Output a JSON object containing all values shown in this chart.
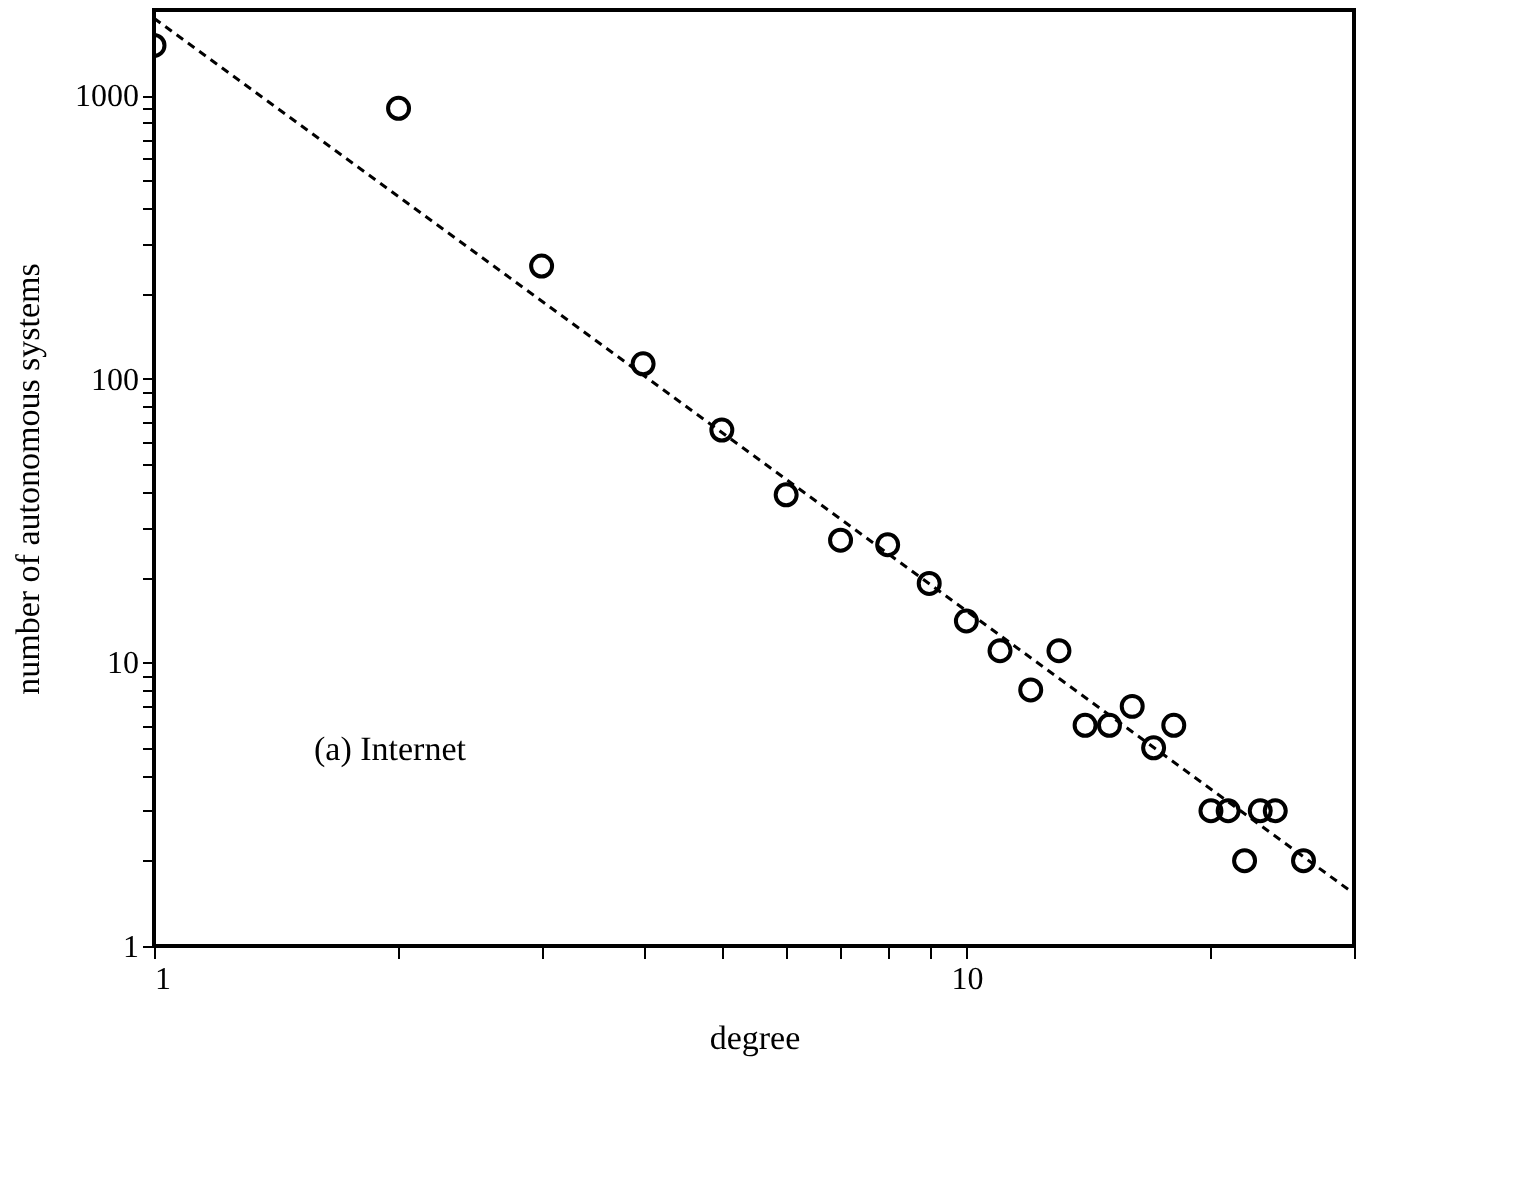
{
  "chart_data": {
    "type": "scatter",
    "xlabel": "degree",
    "ylabel": "number of autonomous systems",
    "annotations": [
      "(a)  Internet"
    ],
    "log": "xy",
    "grid": false,
    "marker": "circle",
    "xlim": [
      1,
      30
    ],
    "ylim": [
      1,
      2000
    ],
    "xticks": [
      1,
      {
        "value": 2,
        "label": null
      },
      {
        "value": 3,
        "label": null
      },
      {
        "value": 4,
        "label": null
      },
      {
        "value": 5,
        "label": null
      },
      {
        "value": 6,
        "label": null
      },
      {
        "value": 7,
        "label": null
      },
      {
        "value": 8,
        "label": null
      },
      {
        "value": 9,
        "label": null
      },
      10,
      {
        "value": 20,
        "label": null
      },
      {
        "value": 30,
        "label": null
      }
    ],
    "yticks": [
      1,
      {
        "value": 2,
        "label": null
      },
      {
        "value": 3,
        "label": null
      },
      {
        "value": 4,
        "label": null
      },
      {
        "value": 5,
        "label": null
      },
      {
        "value": 6,
        "label": null
      },
      {
        "value": 7,
        "label": null
      },
      {
        "value": 8,
        "label": null
      },
      {
        "value": 9,
        "label": null
      },
      10,
      {
        "value": 20,
        "label": null
      },
      {
        "value": 30,
        "label": null
      },
      {
        "value": 40,
        "label": null
      },
      {
        "value": 50,
        "label": null
      },
      {
        "value": 60,
        "label": null
      },
      {
        "value": 70,
        "label": null
      },
      {
        "value": 80,
        "label": null
      },
      {
        "value": 90,
        "label": null
      },
      100,
      {
        "value": 200,
        "label": null
      },
      {
        "value": 300,
        "label": null
      },
      {
        "value": 400,
        "label": null
      },
      {
        "value": 500,
        "label": null
      },
      {
        "value": 600,
        "label": null
      },
      {
        "value": 700,
        "label": null
      },
      {
        "value": 800,
        "label": null
      },
      {
        "value": 900,
        "label": null
      },
      1000
    ],
    "series": [
      {
        "color": "#000000",
        "x": [
          1,
          2,
          3,
          4,
          5,
          6,
          7,
          8,
          9,
          10,
          11,
          12,
          13,
          14,
          15,
          16,
          17,
          18,
          20,
          21,
          22,
          23,
          24,
          26
        ],
        "values": [
          1500,
          900,
          250,
          113,
          66,
          39,
          27,
          26,
          19,
          14,
          11,
          8,
          11,
          6,
          6,
          7,
          5,
          6,
          3,
          3,
          2,
          3,
          3,
          2
        ]
      },
      {
        "type": "line",
        "color": "#000000",
        "line_style": "dashed",
        "marker": "none",
        "x": [
          1,
          30
        ],
        "values": [
          1870,
          1.53
        ]
      }
    ]
  }
}
